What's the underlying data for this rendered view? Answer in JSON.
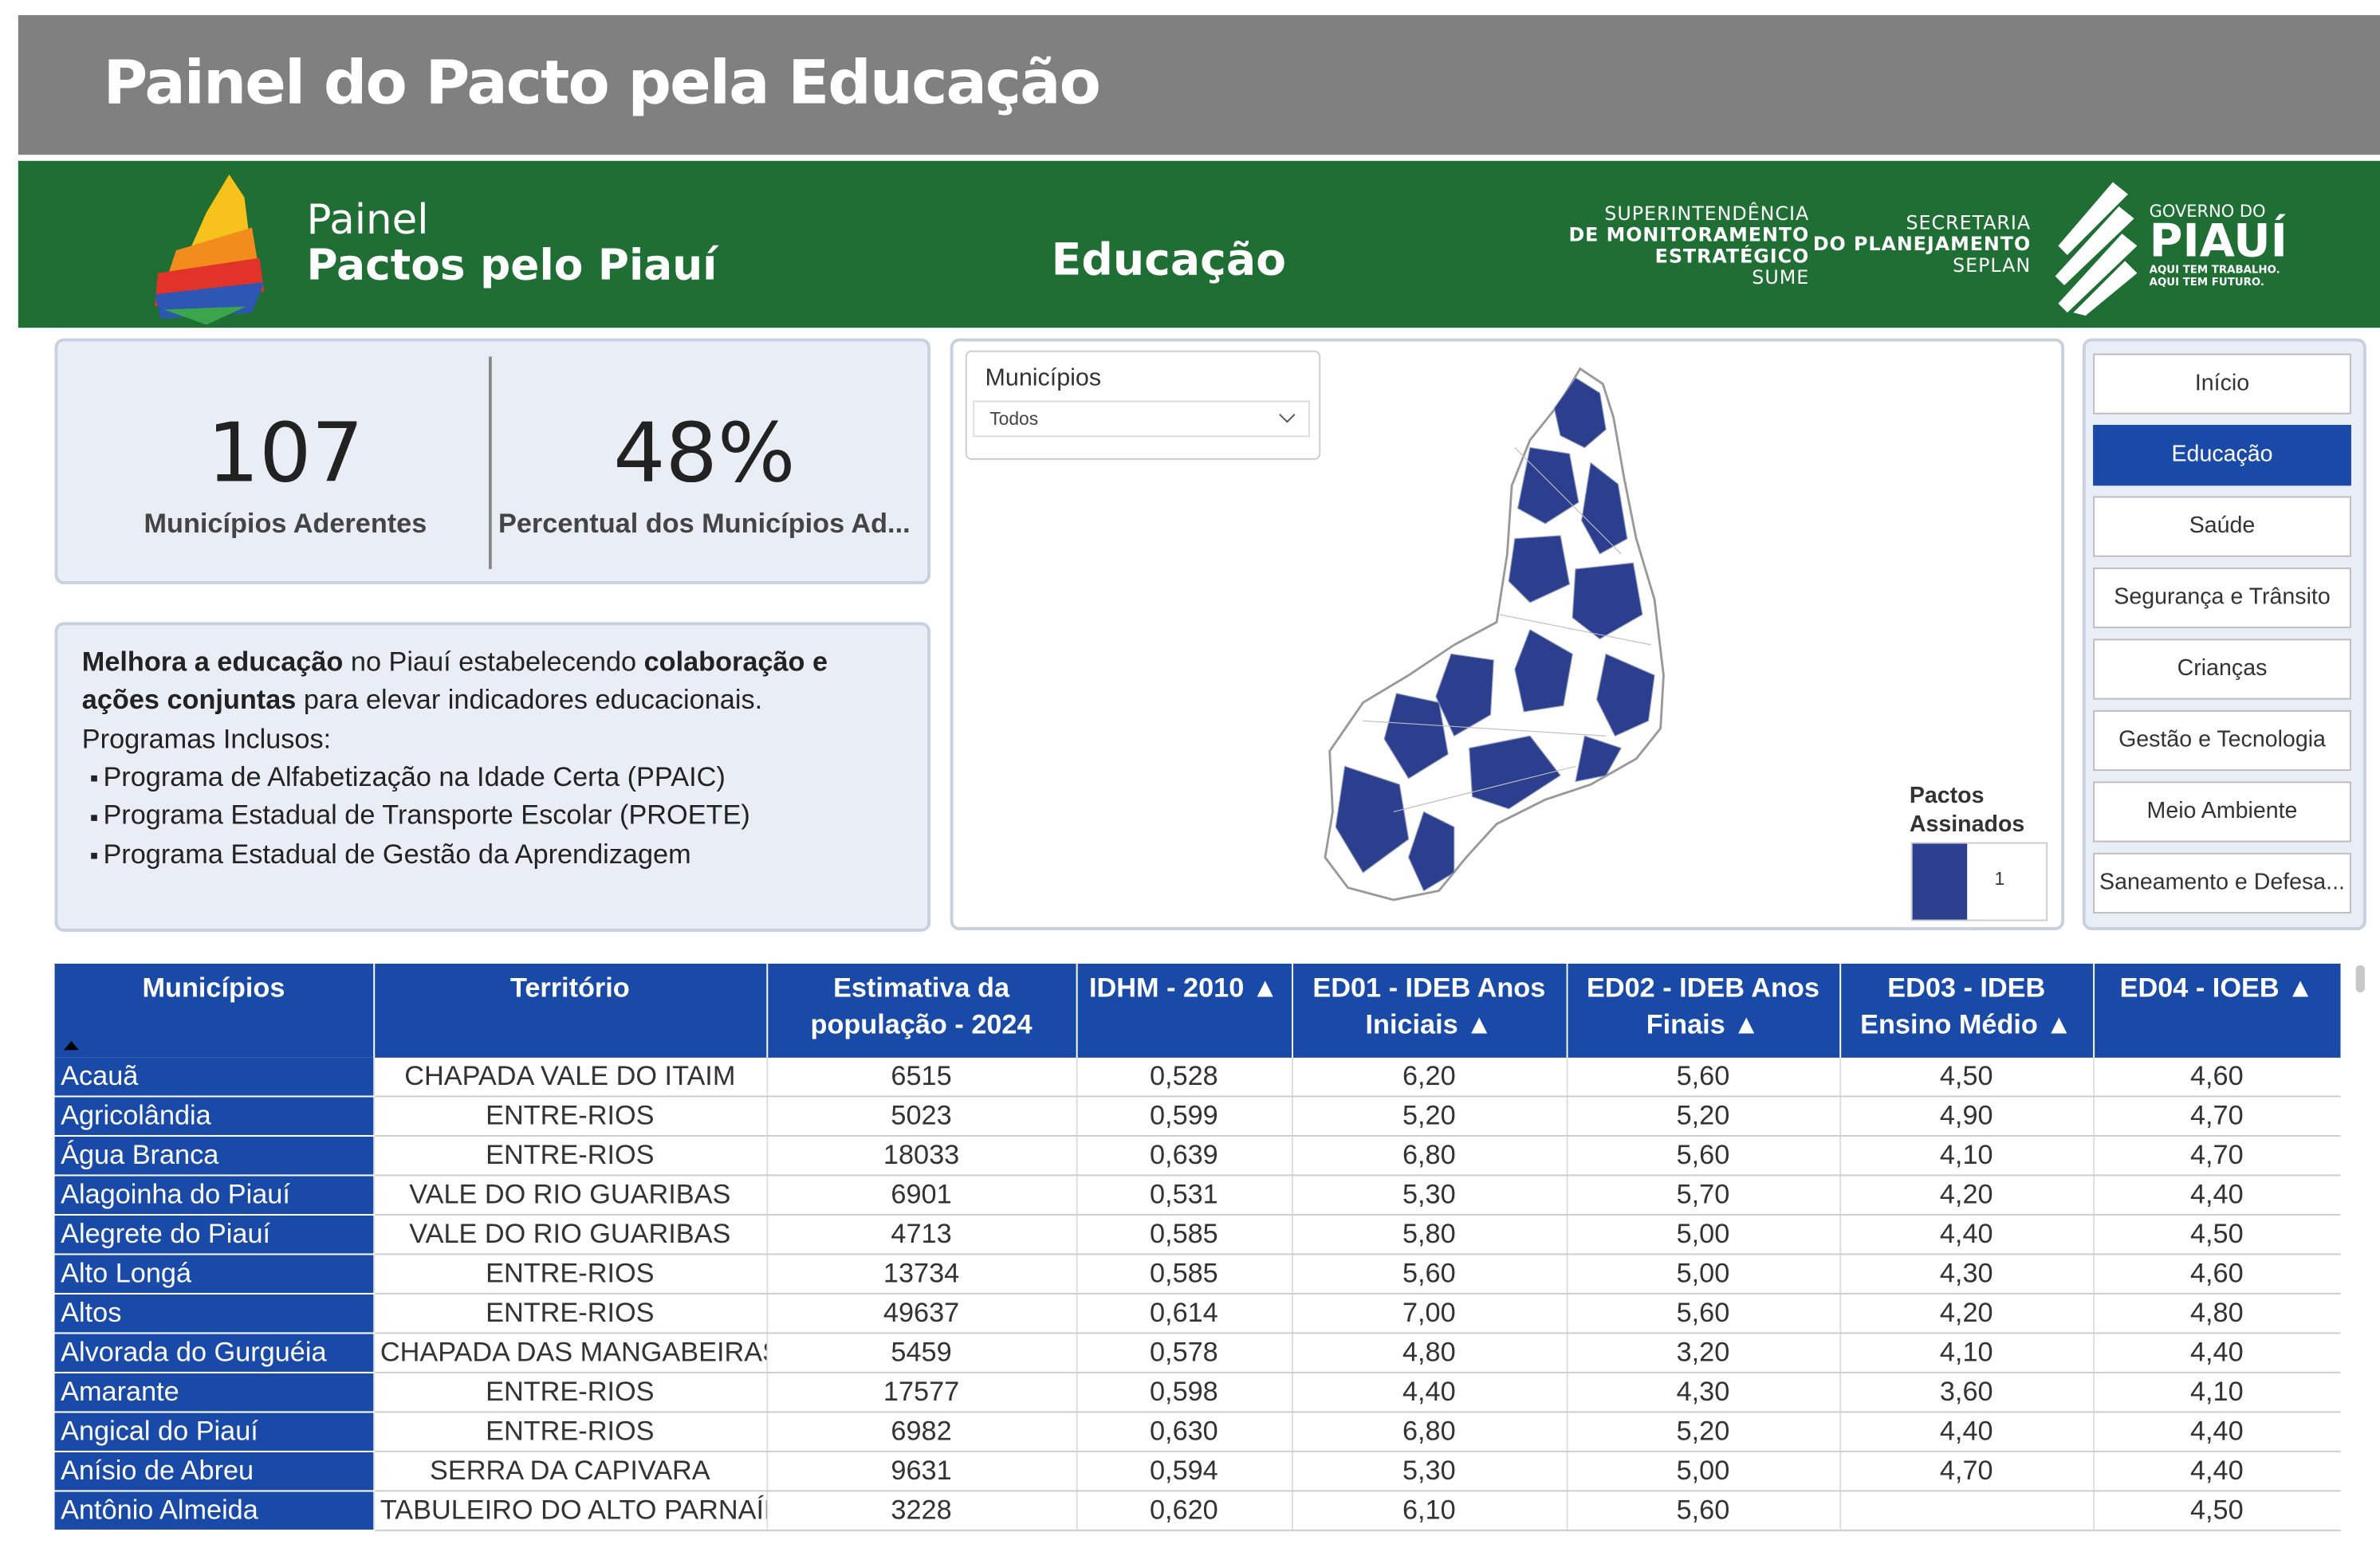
{
  "header": {
    "title": "Painel do Pacto pela Educação"
  },
  "banner": {
    "logo_line1": "Painel",
    "logo_line2": "Pactos pelo Piauí",
    "section": "Educação",
    "sume": [
      "SUPERINTENDÊNCIA",
      "DE MONITORAMENTO",
      "ESTRATÉGICO",
      "SUME"
    ],
    "seplan": [
      "SECRETARIA",
      "DO PLANEJAMENTO",
      "SEPLAN"
    ],
    "governo": [
      "GOVERNO DO",
      "PIAUÍ",
      "AQUI TEM TRABALHO.",
      "AQUI TEM FUTURO."
    ]
  },
  "kpis": [
    {
      "value": "107",
      "label": "Municípios Aderentes"
    },
    {
      "value": "48%",
      "label": "Percentual dos Municípios Ad..."
    }
  ],
  "description": {
    "paragraph": [
      {
        "text": "Melhora a educação",
        "bold": true
      },
      {
        "text": " no Piauí estabelecendo ",
        "bold": false
      },
      {
        "text": "colaboração e ações conjuntas",
        "bold": true
      },
      {
        "text": " para elevar indicadores educacionais.",
        "bold": false
      }
    ],
    "programs_title": "Programas Inclusos:",
    "programs": [
      "Programa de Alfabetização na Idade Certa (PPAIC)",
      "Programa Estadual de Transporte Escolar (PROETE)",
      "Programa Estadual de Gestão da Aprendizagem"
    ]
  },
  "map": {
    "slicer_label": "Municípios",
    "slicer_value": "Todos",
    "legend_title": "Pactos Assinados",
    "legend_value": "1"
  },
  "nav": {
    "items": [
      "Início",
      "Educação",
      "Saúde",
      "Segurança e Trânsito",
      "Crianças",
      "Gestão e Tecnologia",
      "Meio Ambiente",
      "Saneamento e Defesa..."
    ],
    "selected": 1
  },
  "table": {
    "columns": [
      "Municípios",
      "Território",
      "Estimativa da população - 2024",
      "IDHM - 2010 ▲",
      "ED01 - IDEB Anos Iniciais ▲",
      "ED02 - IDEB Anos Finais ▲",
      "ED03 - IDEB Ensino Médio ▲",
      "ED04 - IOEB ▲"
    ],
    "rows": [
      [
        "Acauã",
        "CHAPADA VALE DO ITAIM",
        "6515",
        "0,528",
        "6,20",
        "5,60",
        "4,50",
        "4,60"
      ],
      [
        "Agricolândia",
        "ENTRE-RIOS",
        "5023",
        "0,599",
        "5,20",
        "5,20",
        "4,90",
        "4,70"
      ],
      [
        "Água Branca",
        "ENTRE-RIOS",
        "18033",
        "0,639",
        "6,80",
        "5,60",
        "4,10",
        "4,70"
      ],
      [
        "Alagoinha do Piauí",
        "VALE DO RIO GUARIBAS",
        "6901",
        "0,531",
        "5,30",
        "5,70",
        "4,20",
        "4,40"
      ],
      [
        "Alegrete do Piauí",
        "VALE DO RIO GUARIBAS",
        "4713",
        "0,585",
        "5,80",
        "5,00",
        "4,40",
        "4,50"
      ],
      [
        "Alto Longá",
        "ENTRE-RIOS",
        "13734",
        "0,585",
        "5,60",
        "5,00",
        "4,30",
        "4,60"
      ],
      [
        "Altos",
        "ENTRE-RIOS",
        "49637",
        "0,614",
        "7,00",
        "5,60",
        "4,20",
        "4,80"
      ],
      [
        "Alvorada do Gurguéia",
        "CHAPADA DAS MANGABEIRAS",
        "5459",
        "0,578",
        "4,80",
        "3,20",
        "4,10",
        "4,40"
      ],
      [
        "Amarante",
        "ENTRE-RIOS",
        "17577",
        "0,598",
        "4,40",
        "4,30",
        "3,60",
        "4,10"
      ],
      [
        "Angical do Piauí",
        "ENTRE-RIOS",
        "6982",
        "0,630",
        "6,80",
        "5,20",
        "4,40",
        "4,40"
      ],
      [
        "Anísio de Abreu",
        "SERRA DA CAPIVARA",
        "9631",
        "0,594",
        "5,30",
        "5,00",
        "4,70",
        "4,40"
      ],
      [
        "Antônio Almeida",
        "TABULEIRO DO ALTO PARNAÍBA",
        "3228",
        "0,620",
        "6,10",
        "5,60",
        null,
        "4,50"
      ]
    ]
  }
}
